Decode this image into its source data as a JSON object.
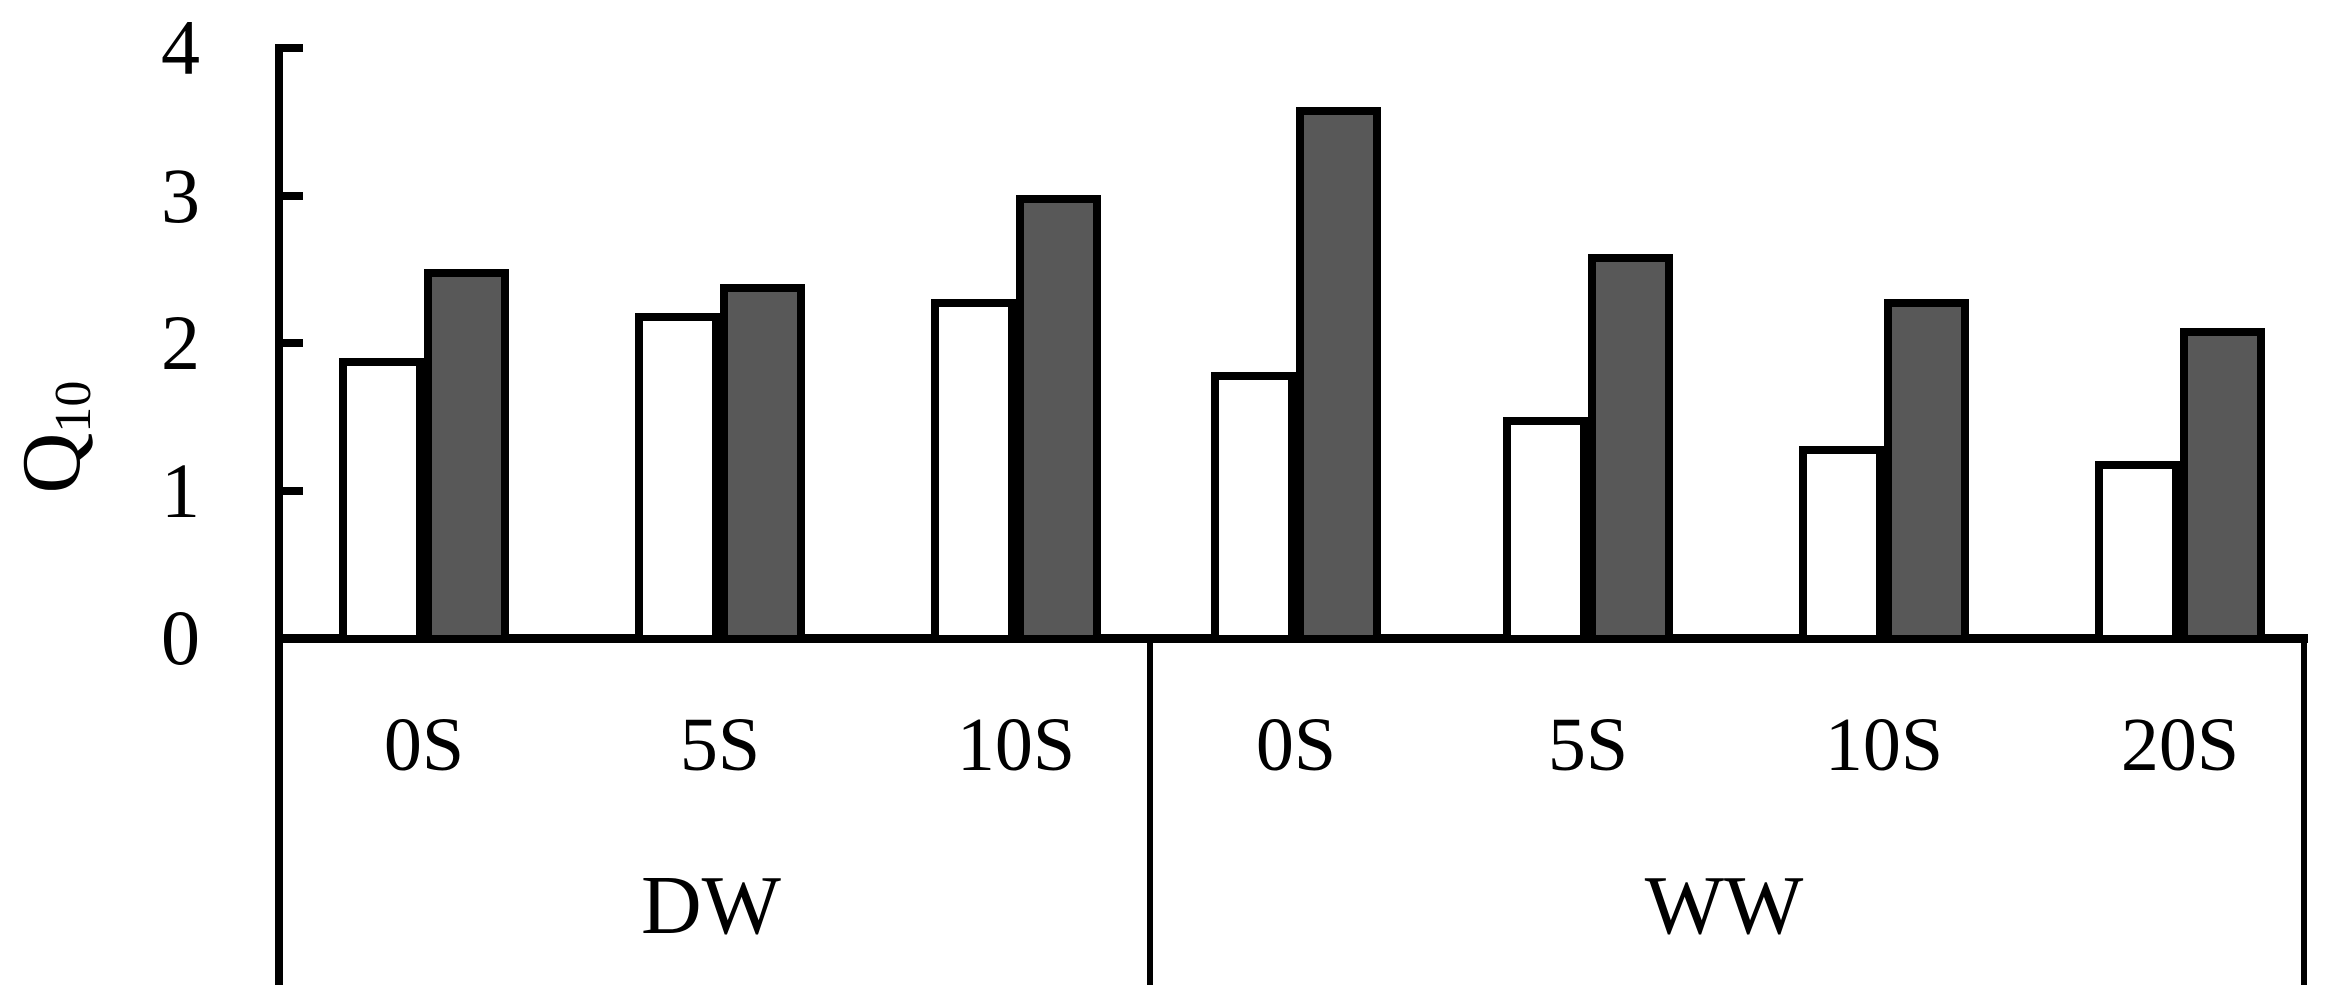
{
  "chart_data": {
    "type": "bar",
    "title": "",
    "ylabel_base": "Q",
    "ylabel_sub": "10",
    "xlabel": "",
    "ylim": [
      0,
      4
    ],
    "yticks": [
      0,
      1,
      2,
      3,
      4
    ],
    "grid": false,
    "legend": "none",
    "groups": [
      {
        "label": "DW",
        "categories": [
          "0S",
          "5S",
          "10S"
        ]
      },
      {
        "label": "WW",
        "categories": [
          "0S",
          "5S",
          "10S",
          "20S"
        ]
      }
    ],
    "series": [
      {
        "name": "open-bars",
        "fill": "#ffffff",
        "values": {
          "DW": [
            1.9,
            2.2,
            2.3
          ],
          "WW": [
            1.8,
            1.5,
            1.3,
            1.2
          ]
        }
      },
      {
        "name": "filled-bars",
        "fill": "#585858",
        "values": {
          "DW": [
            2.5,
            2.4,
            3.0
          ],
          "WW": [
            3.6,
            2.6,
            2.3,
            2.1
          ]
        }
      }
    ],
    "colors": {
      "axis": "#000000",
      "bar_border": "#000000",
      "open_fill": "#ffffff",
      "filled_fill": "#585858"
    }
  }
}
